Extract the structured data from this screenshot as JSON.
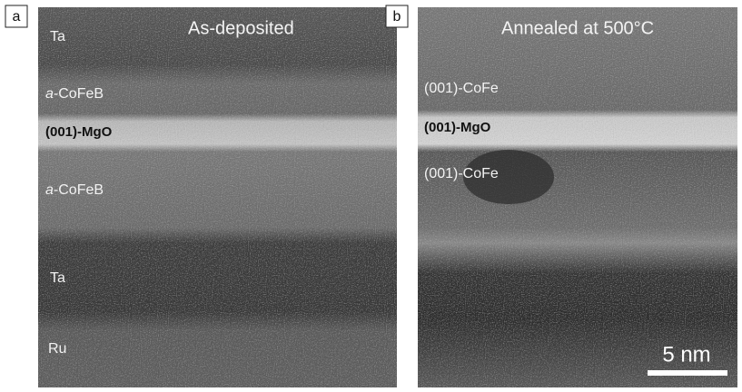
{
  "panels": [
    {
      "tag": "a",
      "title": "As-deposited",
      "labels": [
        "Ta",
        {
          "italic": "a",
          "text": "-CoFeB"
        },
        "(001)-MgO",
        {
          "italic": "a",
          "text": "-CoFeB"
        },
        "Ta",
        "Ru"
      ]
    },
    {
      "tag": "b",
      "title": "Annealed at 500°C",
      "labels": [
        "(001)-CoFe",
        "(001)-MgO",
        "(001)-CoFe"
      ]
    }
  ],
  "scale_bar": "5 nm"
}
